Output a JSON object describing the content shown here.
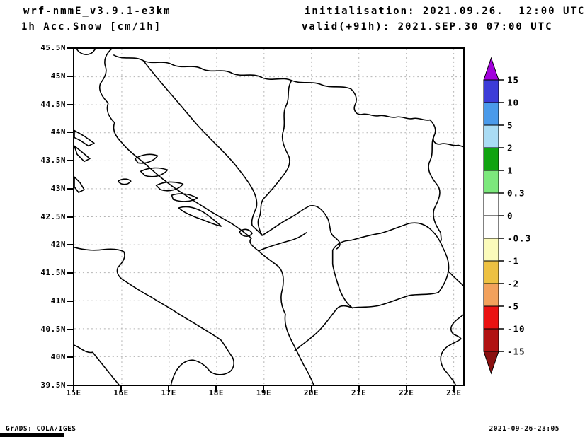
{
  "header": {
    "title_line1": "wrf-nmmE_v3.9.1-e3km",
    "title_line2": "1h Acc.Snow [cm/1h]",
    "init_line": "initialisation: 2021.09.26.  12:00 UTC",
    "valid_line": "valid(+91h): 2021.SEP.30 07:00 UTC"
  },
  "footer": {
    "credit": "GrADS: COLA/IGES",
    "timestamp": "2021-09-26-23:05"
  },
  "chart_data": {
    "type": "heatmap",
    "subtype": "filled-contour meteorological map (GrADS)",
    "title": "1h Acc.Snow [cm/1h]",
    "model": "wrf-nmmE_v3.9.1-e3km",
    "initialisation": "2021.09.26. 12:00 UTC",
    "valid": "2021.SEP.30 07:00 UTC (+91h)",
    "region": "Adriatic / Balkans: Croatia, Bosnia, Serbia, Montenegro, Albania, North Macedonia, SE Italy, N Greece",
    "x_axis": {
      "unit": "degrees east",
      "ticks": [
        "15E",
        "16E",
        "17E",
        "18E",
        "19E",
        "20E",
        "21E",
        "22E",
        "23E"
      ],
      "range": [
        15,
        23.2
      ],
      "tick_step_deg": 1
    },
    "y_axis": {
      "unit": "degrees north",
      "ticks": [
        "45.5N",
        "45N",
        "44.5N",
        "44N",
        "43.5N",
        "43N",
        "42.5N",
        "42N",
        "41.5N",
        "41N",
        "40.5N",
        "40N",
        "39.5N"
      ],
      "range": [
        39.5,
        45.5
      ],
      "tick_step_deg": 0.5
    },
    "grid": {
      "style": "dashed",
      "on": true,
      "lat_step_deg": 0.5,
      "lon_step_deg": 1,
      "color": "#b4b4b4"
    },
    "colorbar": {
      "unit": "cm/1h",
      "orientation": "vertical-right",
      "boundary_labels": [
        "15",
        "10",
        "5",
        "2",
        "1",
        "0.3",
        "0",
        "-0.3",
        "-1",
        "-2",
        "-5",
        "-10",
        "-15"
      ],
      "segment_colors_top_to_bottom": [
        "#3c3cd8",
        "#4a9aea",
        "#aadcf4",
        "#0fa30f",
        "#7ce87c",
        "#ffffff",
        "#ffffff",
        "#fbfbbb",
        "#edc142",
        "#f2a15c",
        "#ea1212",
        "#b11212"
      ],
      "above_max_color": "#a201dc",
      "below_min_color": "#8a1010"
    },
    "field": "Entire domain lies in the 0 to 0.3 cm/1h band (white): no accumulated snow shown"
  },
  "map": {
    "outline_color": "#000000",
    "background": "#ffffff"
  }
}
